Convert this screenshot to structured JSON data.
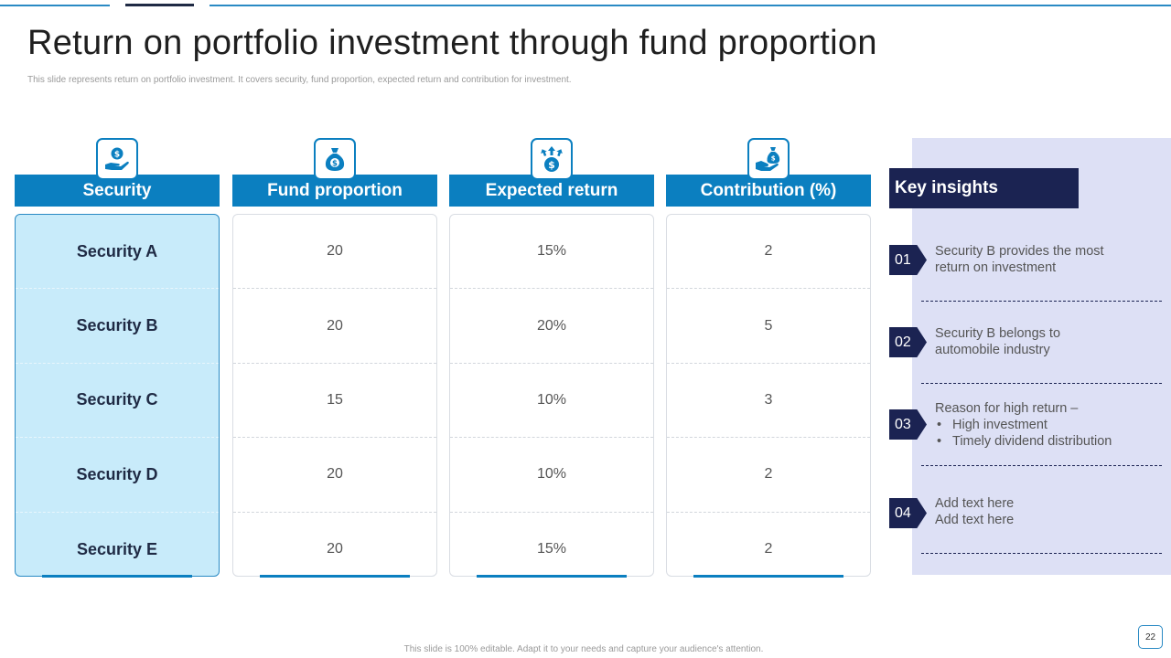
{
  "slide": {
    "title": "Return on portfolio investment through fund proportion",
    "subtitle": "This slide represents return on portfolio investment. It covers security, fund proportion, expected return and contribution for investment.",
    "footer": "This slide is 100% editable. Adapt it to your needs and capture your audience's attention.",
    "page_number": "22",
    "accent_color": "#0b7fc0",
    "dark_color": "#1b2352"
  },
  "table": {
    "columns": [
      {
        "header": "Security",
        "icon": "hand-money-icon",
        "cells": [
          "Security A",
          "Security B",
          "Security C",
          "Security D",
          "Security E"
        ]
      },
      {
        "header": "Fund proportion",
        "icon": "money-bag-icon",
        "cells": [
          "20",
          "20",
          "15",
          "20",
          "20"
        ]
      },
      {
        "header": "Expected return",
        "icon": "dollar-growth-icon",
        "cells": [
          "15%",
          "20%",
          "10%",
          "10%",
          "15%"
        ]
      },
      {
        "header": "Contribution (%)",
        "icon": "hand-coin-icon",
        "cells": [
          "2",
          "5",
          "3",
          "2",
          "2"
        ]
      }
    ]
  },
  "insights": {
    "title": "Key insights",
    "items": [
      {
        "number": "01",
        "lines": [
          "Security B provides the most",
          "return on investment"
        ]
      },
      {
        "number": "02",
        "lines": [
          "Security B belongs to",
          "automobile industry"
        ]
      },
      {
        "number": "03",
        "lines": [
          "Reason for high return –"
        ],
        "bullets": [
          "High investment",
          "Timely dividend distribution"
        ]
      },
      {
        "number": "04",
        "lines": [
          "Add text here",
          "Add text here"
        ]
      }
    ]
  }
}
